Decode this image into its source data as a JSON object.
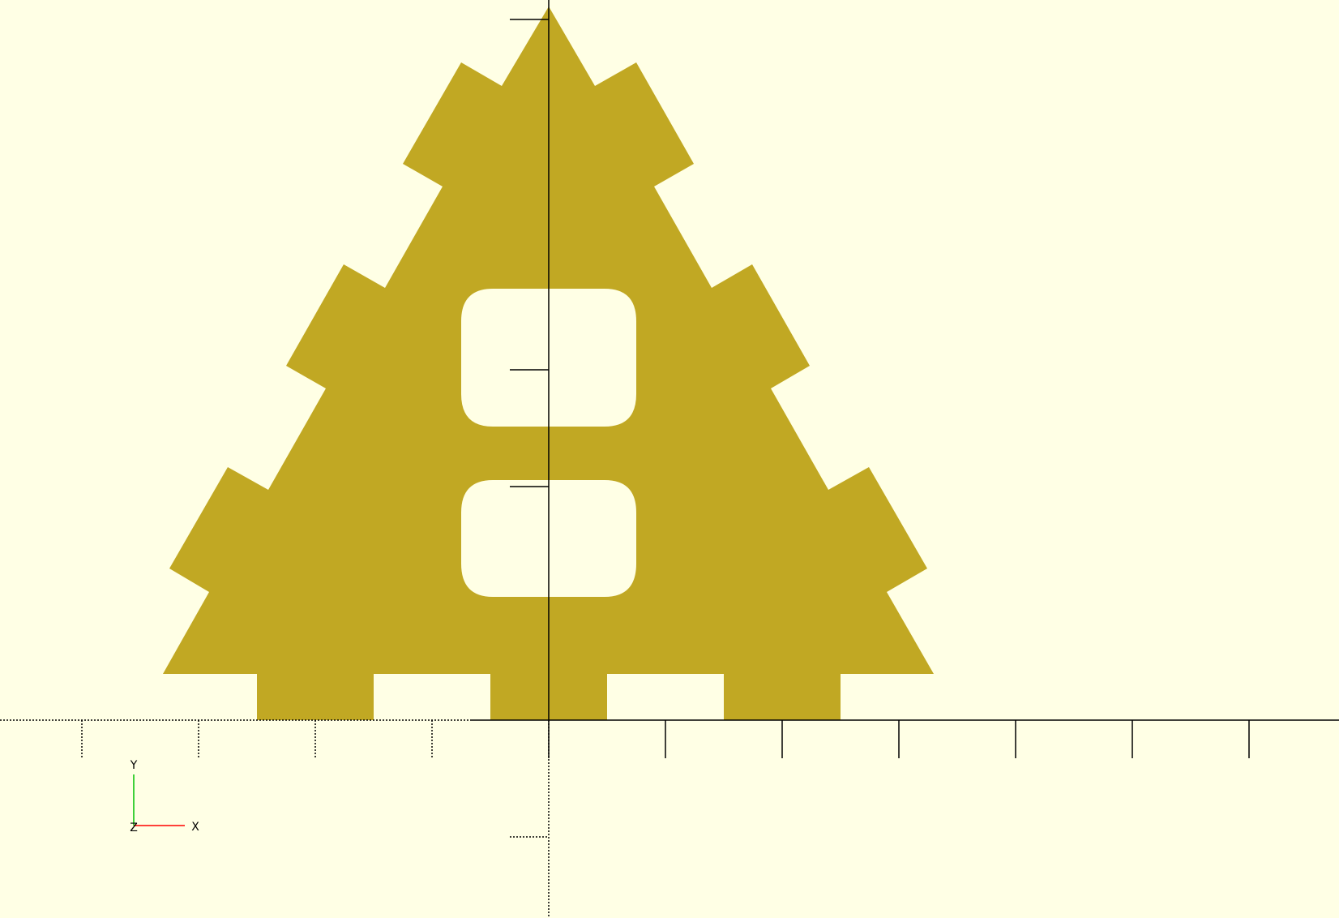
{
  "viewport": {
    "background_color": "#ffffe5",
    "model_color": "#c1a823",
    "axis_color": "#000000",
    "view": "top"
  },
  "model": {
    "description_icon": "triangle-plate-with-teeth-and-two-rounded-slots"
  },
  "axes_gizmo": {
    "x_label": "X",
    "y_label": "Y",
    "z_label": "Z",
    "x_color": "#ff0000",
    "y_color": "#00c000",
    "z_color": "#0000ff"
  }
}
